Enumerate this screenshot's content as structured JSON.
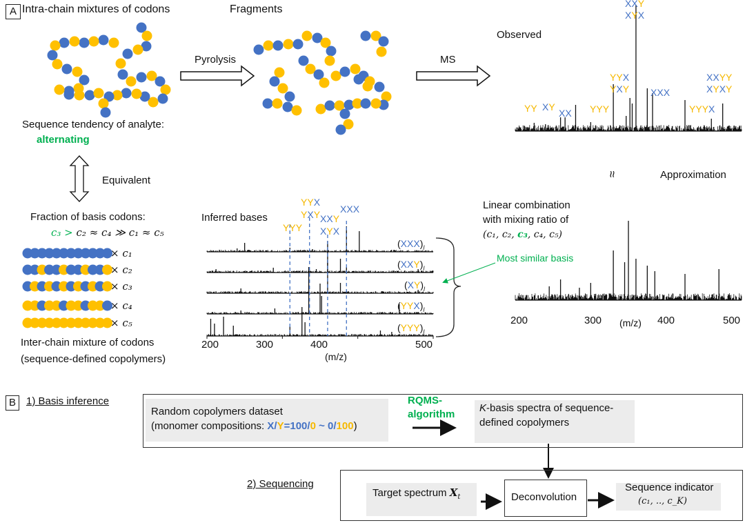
{
  "colors": {
    "X": "#4472C4",
    "Y": "#FFC000",
    "highlight": "#00B050",
    "spectrum": "#111111",
    "guide": "#4472C4"
  },
  "panel_a": {
    "label": "A",
    "intra_title": "Intra-chain mixtures of codons",
    "pyrolysis": "Pyrolysis",
    "fragments": "Fragments",
    "ms": "MS",
    "observed": "Observed",
    "observed_peaks": [
      "XXY",
      "XYX",
      "YYX",
      "YXY",
      "XXX",
      "XXYY",
      "XYXY",
      "YY",
      "XY",
      "XX",
      "YYY",
      "YYYX"
    ],
    "tendency": "Sequence tendency of analyte:",
    "tendency_value": "alternating",
    "equivalent": "Equivalent",
    "approx_symbol": "≈",
    "approximation": "Approximation",
    "fraction_title": "Fraction of basis codons:",
    "formula_highlight": "c₃ >",
    "formula_rest": " c₂ ≈ c₄ ≫ c₁ ≈ c₅",
    "basis_chains": [
      {
        "pattern": "XXXXXXXXXXXX",
        "coef": "× c₁"
      },
      {
        "pattern": "XXYXXYXXYXXY",
        "coef": "× c₂"
      },
      {
        "pattern": "XYXYXYXYXYXY",
        "coef": "× c₃"
      },
      {
        "pattern": "YYXYYXYYXYYX",
        "coef": "× c₄"
      },
      {
        "pattern": "YYYYYYYYYYYY",
        "coef": "× c₅"
      }
    ],
    "inter_title": "Inter-chain mixture of codons",
    "inter_subtitle": "(sequence-defined copolymers)",
    "inferred_title": "Inferred bases",
    "inferred_peak_labels": [
      "YYY",
      "YYX",
      "YXY",
      "XXY",
      "XYX",
      "XXX"
    ],
    "bases": [
      "XXX",
      "XXY",
      "XY",
      "YYX",
      "YYY"
    ],
    "base_subscript": "l",
    "x_ticks": [
      "200",
      "300",
      "400",
      "500"
    ],
    "xlabel": "(m/z)",
    "linear_line1": "Linear combination",
    "linear_line2": "with mixing ratio of",
    "linear_ratio_pre": "(c₁, c₂, ",
    "linear_ratio_hl": "c₃",
    "linear_ratio_post": ", c₄, c₅)",
    "most_similar": "Most similar basis"
  },
  "panel_b": {
    "label": "B",
    "step1": "1) Basis inference",
    "dataset_line1": "Random copolymers dataset",
    "dataset_pre": "(monomer compositions: ",
    "comp": {
      "x": "X",
      "slash1": "/",
      "y": "Y",
      "eq": "=",
      "v1": "100",
      "slash2": "/",
      "v2": "0",
      "tilde": " ~ ",
      "v3": "0",
      "slash3": "/",
      "v4": "100"
    },
    "dataset_post": ")",
    "algo": "RQMS-\nalgorithm",
    "algo1": "RQMS-",
    "algo2": "algorithm",
    "kbasis_k": "K",
    "kbasis_line1": "-basis spectra of sequence-",
    "kbasis_line2": "defined copolymers",
    "step2": "2) Sequencing",
    "target": "Target spectrum ",
    "target_sym": "X",
    "target_sub": "t",
    "deconv": "Deconvolution",
    "indicator": "Sequence indicator",
    "indicator_sym": "(c₁, .., c_K)"
  }
}
